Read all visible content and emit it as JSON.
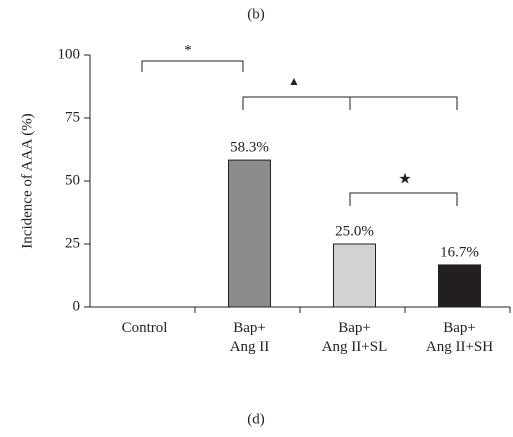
{
  "chart_data": {
    "type": "bar",
    "title": "(b)",
    "caption": "(d)",
    "y_label": "Incidence of AAA (%)",
    "categories": [
      [
        "Control"
      ],
      [
        "Bap+",
        "Ang II"
      ],
      [
        "Bap+",
        "Ang II+SL"
      ],
      [
        "Bap+",
        "Ang II+SH"
      ]
    ],
    "values": [
      0,
      58.3,
      25.0,
      16.7
    ],
    "value_labels": [
      null,
      "58.3%",
      "25.0%",
      "16.7%"
    ],
    "colors": [
      "#ffffff",
      "#8c8c8c",
      "#d2d2d2",
      "#231f20"
    ],
    "ylim": [
      0,
      100
    ],
    "yticks": [
      0,
      25,
      50,
      75,
      100
    ],
    "grid": false,
    "annotations": [
      "*",
      "▲",
      "★"
    ]
  }
}
